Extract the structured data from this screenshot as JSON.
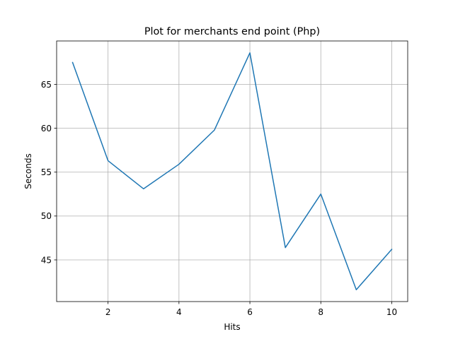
{
  "chart_data": {
    "type": "line",
    "title": "Plot for merchants end point (Php)",
    "xlabel": "Hits",
    "ylabel": "Seconds",
    "x": [
      1,
      2,
      3,
      4,
      5,
      6,
      7,
      8,
      9,
      10
    ],
    "series": [
      {
        "values": [
          67.5,
          56.3,
          53.1,
          55.9,
          59.8,
          68.6,
          46.4,
          52.5,
          41.6,
          46.2
        ],
        "color": "#1f77b4"
      }
    ],
    "xlim": [
      0.55,
      10.45
    ],
    "ylim": [
      40.25,
      69.95
    ],
    "xticks": [
      2,
      4,
      6,
      8,
      10
    ],
    "yticks": [
      45,
      50,
      55,
      60,
      65
    ],
    "grid": true,
    "legend": "none"
  }
}
